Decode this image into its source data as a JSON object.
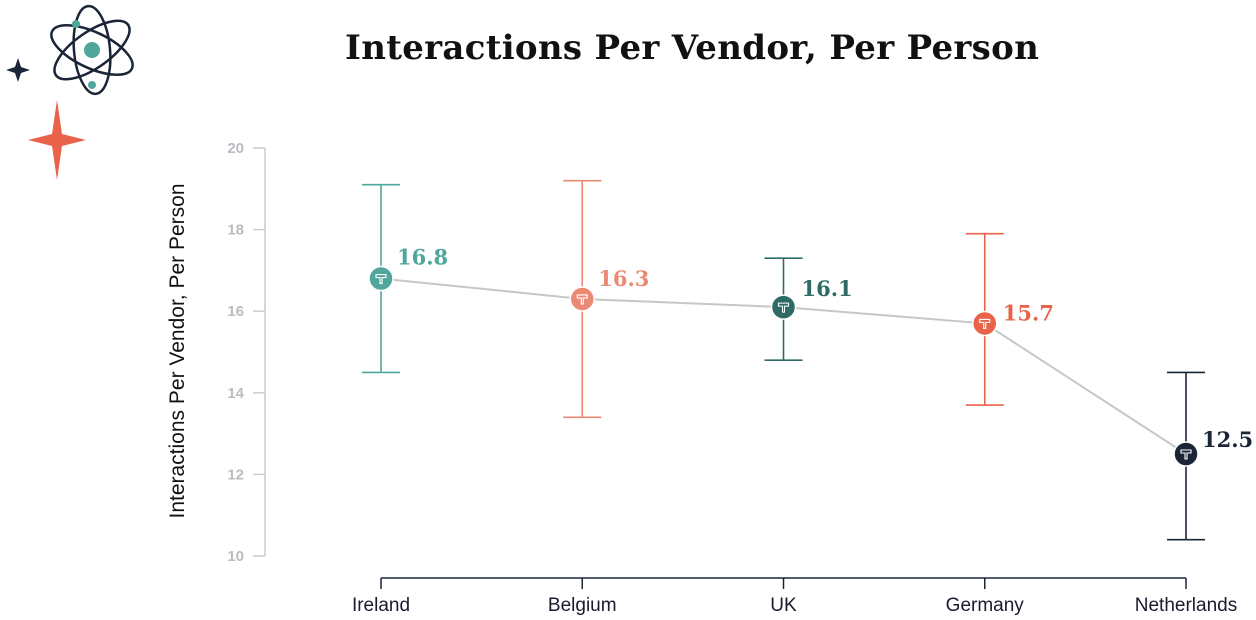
{
  "chart_data": {
    "type": "line",
    "title": "Interactions Per Vendor, Per Person",
    "xlabel": "",
    "ylabel": "Interactions Per Vendor, Per Person",
    "ylim": [
      10,
      20
    ],
    "yticks": [
      10,
      12,
      14,
      16,
      18,
      20
    ],
    "categories": [
      "Ireland",
      "Belgium",
      "UK",
      "Germany",
      "Netherlands"
    ],
    "values": [
      16.8,
      16.3,
      16.1,
      15.7,
      12.5
    ],
    "value_labels": [
      "16.8",
      "16.3",
      "16.1",
      "15.7",
      "12.5"
    ],
    "error_low": [
      14.5,
      13.4,
      14.8,
      13.7,
      10.4
    ],
    "error_high": [
      19.1,
      19.2,
      17.3,
      17.9,
      14.5
    ],
    "point_colors": [
      "#4fa79b",
      "#ea8a74",
      "#2f6b66",
      "#e9634a",
      "#1b2538"
    ],
    "line_color": "#c7c7c7",
    "grid": false,
    "legend": "none"
  },
  "decor": {
    "atom_icon_color": "#1b2538",
    "atom_nucleus_color": "#4fa79b",
    "star_dark_color": "#1b2538",
    "star_orange_color": "#e9634a"
  }
}
